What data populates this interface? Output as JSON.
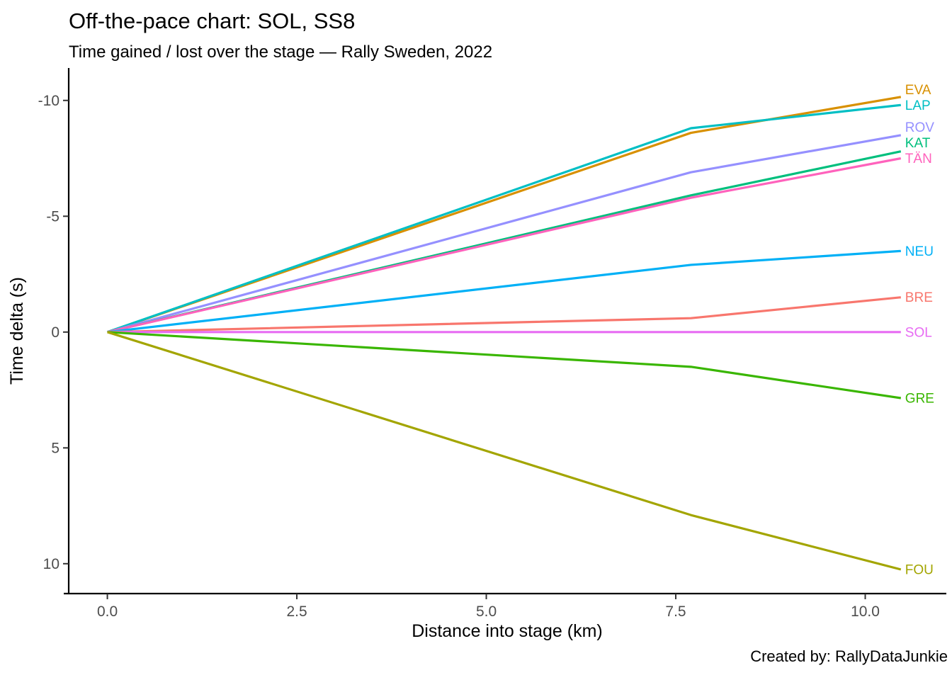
{
  "credit": {
    "text": "Created by: RallyDataJunkie"
  },
  "chart_data": {
    "type": "line",
    "title": "Off-the-pace chart: SOL, SS8",
    "subtitle": "Time gained / lost over the stage — Rally Sweden, 2022",
    "xlabel": "Distance into stage (km)",
    "ylabel": "Time delta (s)",
    "x_ticks": [
      0.0,
      2.5,
      5.0,
      7.5,
      10.0
    ],
    "x_tick_labels": [
      "0.0",
      "2.5",
      "5.0",
      "7.5",
      "10.0"
    ],
    "y_ticks": [
      -10,
      -5,
      0,
      5,
      10
    ],
    "y_tick_labels": [
      "-10",
      "-5",
      "0",
      "5",
      "10"
    ],
    "xlim": [
      -0.51,
      11.07
    ],
    "ylim": [
      -11.4,
      11.29
    ],
    "y_axis_reversed": true,
    "grid": false,
    "legend_position": "direct-labels-right",
    "split_distances_km": [
      0,
      7.7,
      10.47
    ],
    "series": [
      {
        "name": "EVA",
        "color": "#D89000",
        "x": [
          0,
          7.7,
          10.47
        ],
        "y": [
          0,
          -8.6,
          -10.15
        ]
      },
      {
        "name": "LAP",
        "color": "#00BFC4",
        "x": [
          0,
          7.7,
          10.47
        ],
        "y": [
          0,
          -8.8,
          -9.8
        ]
      },
      {
        "name": "ROV",
        "color": "#9590FF",
        "x": [
          0,
          7.7,
          10.47
        ],
        "y": [
          0,
          -6.9,
          -8.5
        ]
      },
      {
        "name": "KAT",
        "color": "#00BF7D",
        "x": [
          0,
          7.7,
          10.47
        ],
        "y": [
          0,
          -5.9,
          -7.8
        ]
      },
      {
        "name": "TÄN",
        "color": "#FF62BC",
        "x": [
          0,
          7.7,
          10.47
        ],
        "y": [
          0,
          -5.8,
          -7.5
        ]
      },
      {
        "name": "NEU",
        "color": "#00B0F6",
        "x": [
          0,
          7.7,
          10.47
        ],
        "y": [
          0,
          -2.9,
          -3.5
        ]
      },
      {
        "name": "BRE",
        "color": "#F8766D",
        "x": [
          0,
          7.7,
          10.47
        ],
        "y": [
          0,
          -0.6,
          -1.5
        ]
      },
      {
        "name": "SOL",
        "color": "#E76BF3",
        "x": [
          0,
          7.7,
          10.47
        ],
        "y": [
          0,
          0,
          0
        ]
      },
      {
        "name": "GRE",
        "color": "#39B600",
        "x": [
          0,
          7.7,
          10.47
        ],
        "y": [
          0,
          1.5,
          2.85
        ]
      },
      {
        "name": "FOU",
        "color": "#A3A500",
        "x": [
          0,
          7.7,
          10.47
        ],
        "y": [
          0,
          7.9,
          10.25
        ]
      }
    ]
  }
}
